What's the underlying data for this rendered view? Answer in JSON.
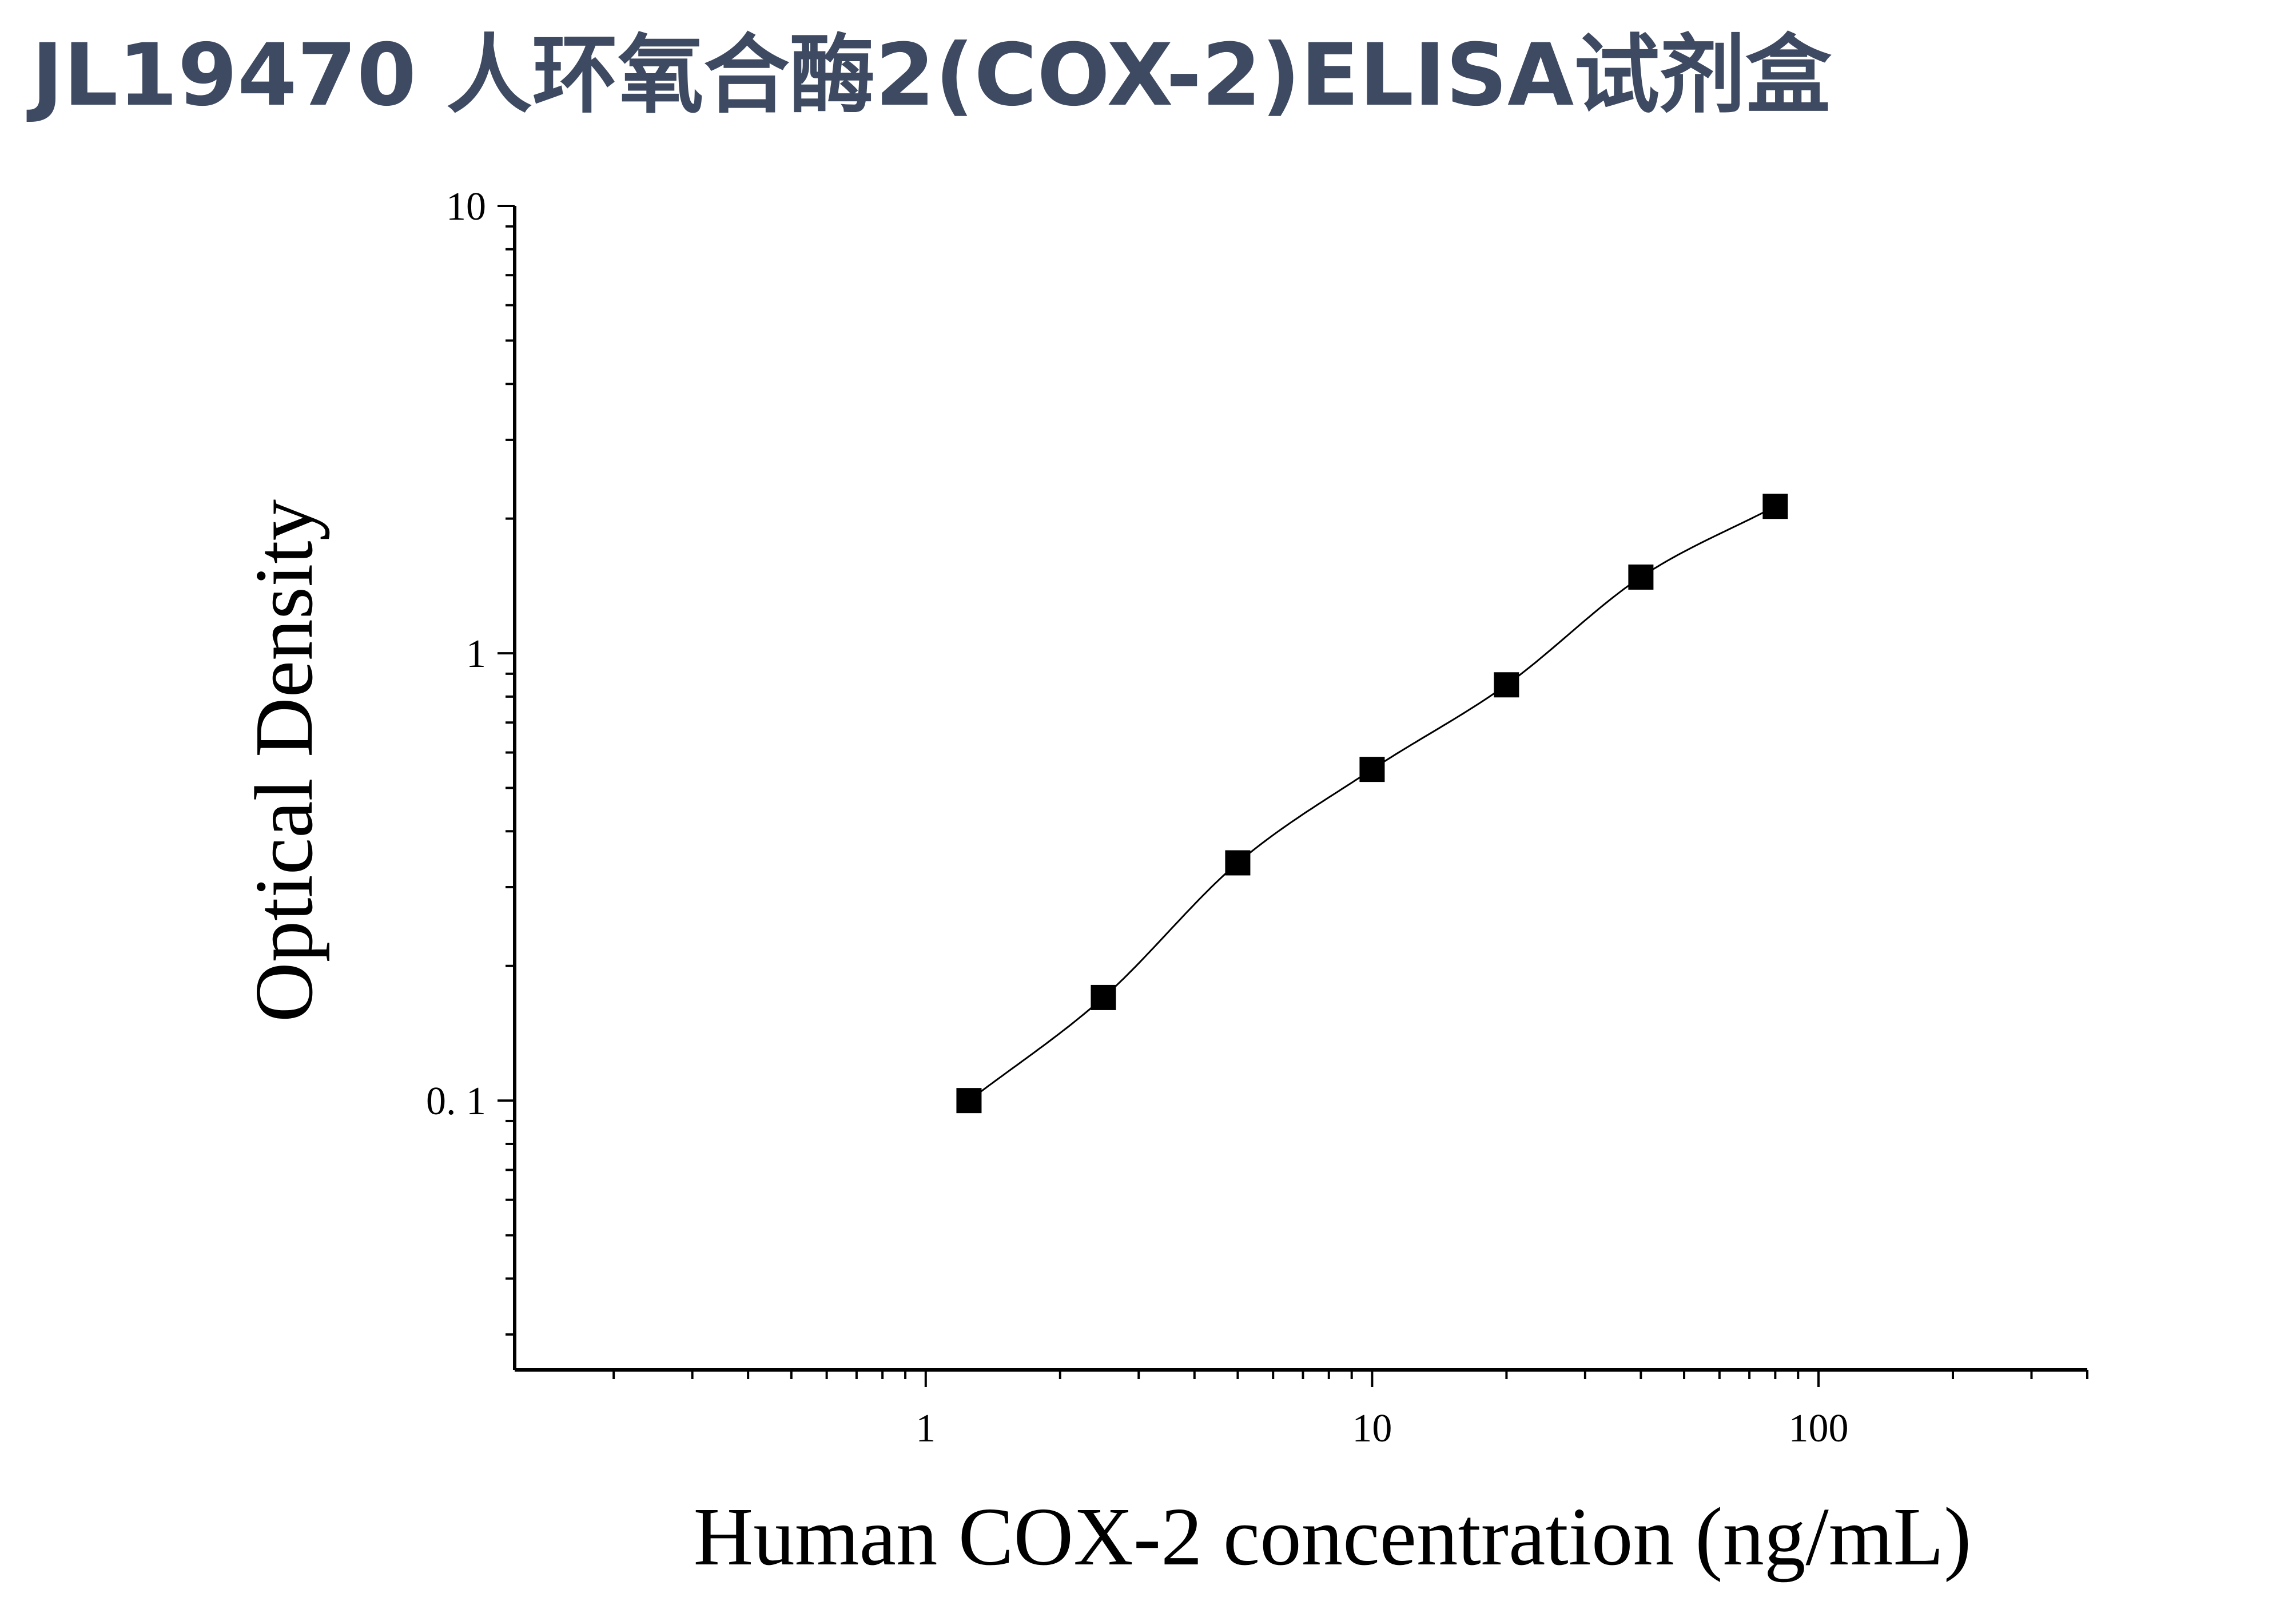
{
  "page": {
    "title": "JL19470 人环氧合酶2(COX-2)ELISA试剂盒"
  },
  "colors": {
    "title": "#3e4a61",
    "axis": "#000000",
    "marker": "#000000",
    "curve": "#000000"
  },
  "chart_data": {
    "type": "scatter",
    "title": "",
    "xlabel": "Human COX-2 concentration (ng/mL)",
    "ylabel": "Optical Density",
    "xscale": "log",
    "yscale": "log",
    "xlim": [
      0.12,
      400
    ],
    "ylim": [
      0.025,
      10
    ],
    "x_ticks": [
      {
        "value": 1,
        "label": "1"
      },
      {
        "value": 10,
        "label": "10"
      },
      {
        "value": 100,
        "label": "100"
      }
    ],
    "y_ticks": [
      {
        "value": 0.1,
        "label": "0. 1"
      },
      {
        "value": 1,
        "label": "1"
      },
      {
        "value": 10,
        "label": "10"
      }
    ],
    "grid": false,
    "legend": "none",
    "marker": "square",
    "fit_curve": true,
    "series": [
      {
        "x": [
          1.25,
          2.5,
          5,
          10,
          20,
          40,
          80
        ],
        "y": [
          0.1,
          0.17,
          0.34,
          0.55,
          0.85,
          1.48,
          2.13
        ]
      }
    ]
  }
}
